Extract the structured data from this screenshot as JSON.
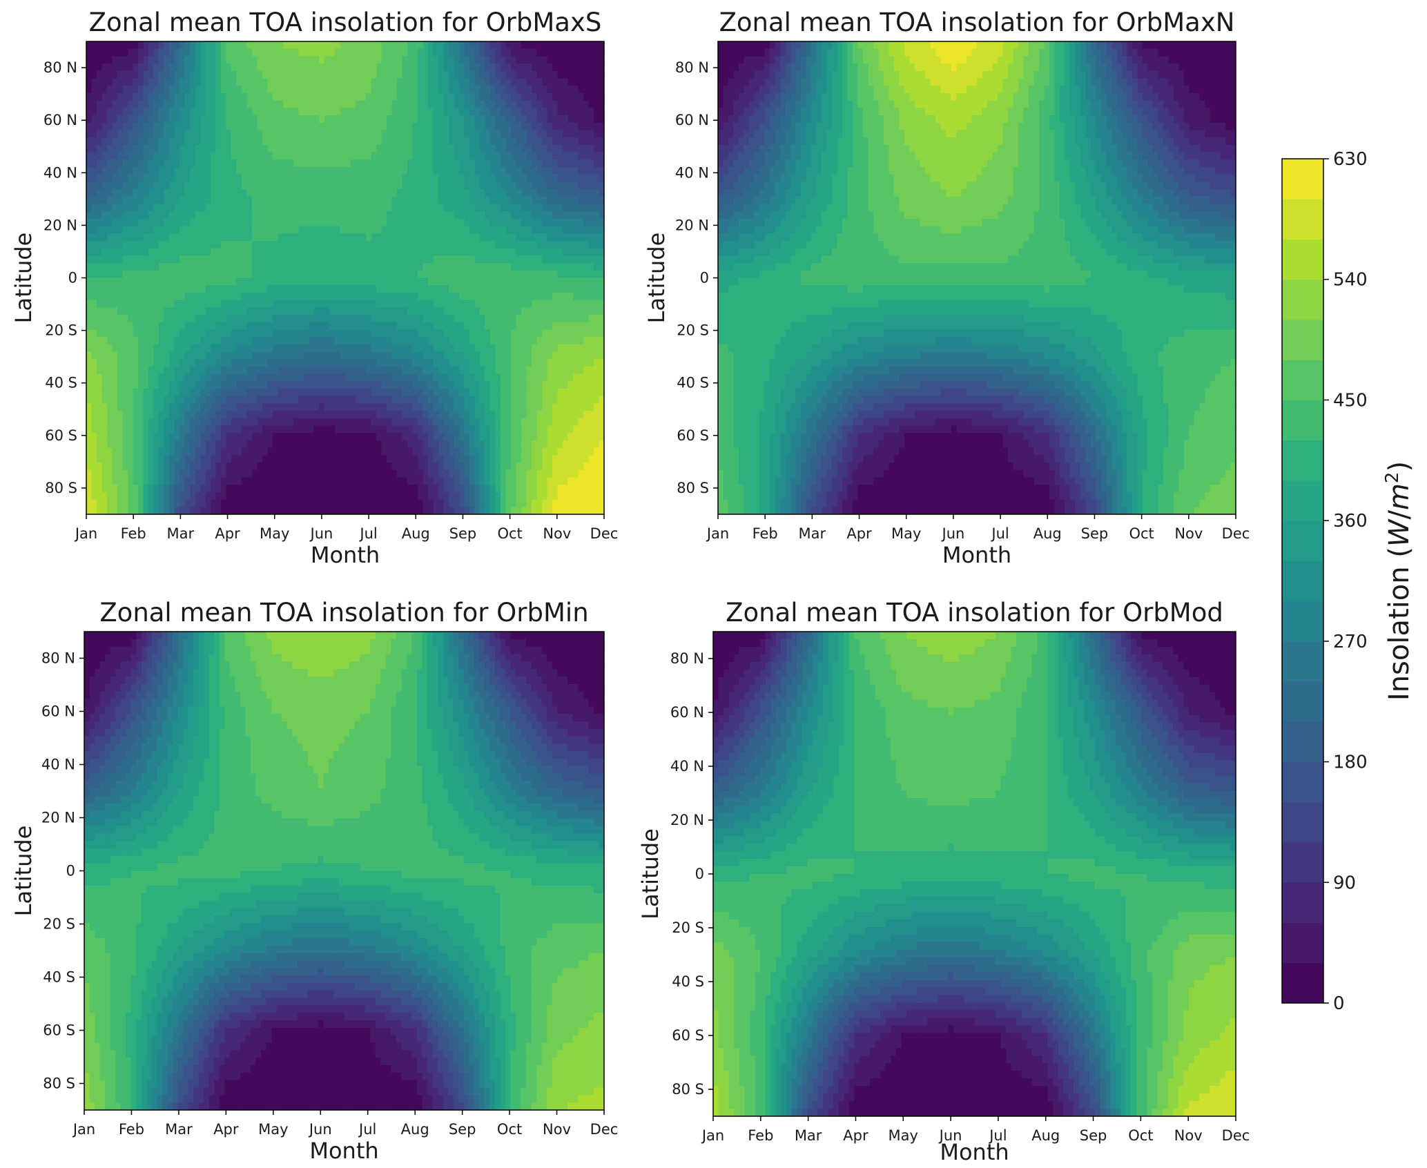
{
  "chart_data": [
    {
      "type": "heatmap",
      "title": "Zonal mean TOA insolation for OrbMaxS",
      "xlabel": "Month",
      "ylabel": "Latitude",
      "x": [
        "Jan",
        "Feb",
        "Mar",
        "Apr",
        "May",
        "Jun",
        "Jul",
        "Aug",
        "Sep",
        "Oct",
        "Nov",
        "Dec"
      ],
      "y_ticks": [
        "80 N",
        "60 N",
        "40 N",
        "20 N",
        "0",
        "20 S",
        "40 S",
        "60 S",
        "80 S"
      ],
      "ylim": [
        -90,
        90
      ],
      "z_grid": {
        "latitudes": [
          90,
          60,
          30,
          0,
          -30,
          -60,
          -90
        ],
        "values": [
          [
            0,
            10,
            220,
            460,
            510,
            520,
            500,
            440,
            240,
            30,
            0,
            0
          ],
          [
            40,
            170,
            310,
            420,
            470,
            480,
            470,
            420,
            330,
            200,
            70,
            20
          ],
          [
            210,
            280,
            360,
            410,
            430,
            430,
            430,
            410,
            370,
            300,
            220,
            190
          ],
          [
            420,
            430,
            440,
            430,
            410,
            400,
            410,
            420,
            440,
            440,
            430,
            420
          ],
          [
            520,
            460,
            370,
            290,
            250,
            230,
            250,
            290,
            360,
            450,
            520,
            540
          ],
          [
            560,
            450,
            260,
            90,
            30,
            10,
            20,
            80,
            250,
            450,
            560,
            600
          ],
          [
            600,
            470,
            150,
            0,
            0,
            0,
            0,
            0,
            140,
            470,
            620,
            630
          ]
        ]
      }
    },
    {
      "type": "heatmap",
      "title": "Zonal mean TOA insolation for OrbMaxN",
      "xlabel": "Month",
      "ylabel": "Latitude",
      "x": [
        "Jan",
        "Feb",
        "Mar",
        "Apr",
        "May",
        "Jun",
        "Jul",
        "Aug",
        "Sep",
        "Oct",
        "Nov",
        "Dec"
      ],
      "y_ticks": [
        "80 N",
        "60 N",
        "40 N",
        "20 N",
        "0",
        "20 S",
        "40 S",
        "60 S",
        "80 S"
      ],
      "ylim": [
        -90,
        90
      ],
      "z_grid": {
        "latitudes": [
          90,
          60,
          30,
          0,
          -30,
          -60,
          -90
        ],
        "values": [
          [
            0,
            10,
            240,
            480,
            580,
            630,
            580,
            470,
            220,
            20,
            0,
            0
          ],
          [
            30,
            160,
            310,
            440,
            520,
            550,
            520,
            430,
            300,
            170,
            50,
            10
          ],
          [
            180,
            260,
            360,
            440,
            490,
            510,
            490,
            440,
            360,
            270,
            190,
            160
          ],
          [
            380,
            400,
            430,
            440,
            440,
            440,
            440,
            440,
            420,
            400,
            380,
            370
          ],
          [
            430,
            400,
            350,
            300,
            270,
            260,
            270,
            300,
            350,
            410,
            440,
            450
          ],
          [
            440,
            380,
            240,
            90,
            30,
            10,
            30,
            90,
            230,
            380,
            450,
            470
          ],
          [
            470,
            380,
            150,
            0,
            0,
            0,
            0,
            0,
            140,
            390,
            480,
            500
          ]
        ]
      }
    },
    {
      "type": "heatmap",
      "title": "Zonal mean TOA insolation for OrbMin",
      "xlabel": "Month",
      "ylabel": "Latitude",
      "x": [
        "Jan",
        "Feb",
        "Mar",
        "Apr",
        "May",
        "Jun",
        "Jul",
        "Aug",
        "Sep",
        "Oct",
        "Nov",
        "Dec"
      ],
      "y_ticks": [
        "80 N",
        "60 N",
        "40 N",
        "20 N",
        "0",
        "20 S",
        "40 S",
        "60 S",
        "80 S"
      ],
      "ylim": [
        -90,
        90
      ],
      "z_grid": {
        "latitudes": [
          90,
          60,
          30,
          0,
          -30,
          -60,
          -90
        ],
        "values": [
          [
            0,
            10,
            230,
            460,
            520,
            540,
            520,
            450,
            230,
            20,
            0,
            0
          ],
          [
            30,
            160,
            300,
            430,
            480,
            490,
            480,
            420,
            310,
            180,
            60,
            20
          ],
          [
            200,
            270,
            360,
            430,
            460,
            480,
            460,
            430,
            370,
            280,
            210,
            180
          ],
          [
            410,
            420,
            430,
            430,
            420,
            410,
            420,
            430,
            430,
            420,
            410,
            400
          ],
          [
            470,
            430,
            360,
            300,
            260,
            240,
            260,
            300,
            360,
            430,
            470,
            480
          ],
          [
            500,
            410,
            250,
            90,
            30,
            10,
            30,
            90,
            240,
            410,
            500,
            520
          ],
          [
            530,
            420,
            150,
            0,
            0,
            0,
            0,
            0,
            140,
            420,
            540,
            550
          ]
        ]
      }
    },
    {
      "type": "heatmap",
      "title": "Zonal mean TOA insolation for OrbMod",
      "xlabel": "Month",
      "ylabel": "Latitude",
      "x": [
        "Jan",
        "Feb",
        "Mar",
        "Apr",
        "May",
        "Jun",
        "Jul",
        "Aug",
        "Sep",
        "Oct",
        "Nov",
        "Dec"
      ],
      "y_ticks": [
        "80 N",
        "60 N",
        "40 N",
        "20 N",
        "0",
        "20 S",
        "40 S",
        "60 S",
        "80 S"
      ],
      "ylim": [
        -90,
        90
      ],
      "z_grid": {
        "latitudes": [
          90,
          60,
          30,
          0,
          -30,
          -60,
          -90
        ],
        "values": [
          [
            0,
            10,
            220,
            450,
            510,
            530,
            510,
            440,
            230,
            20,
            0,
            0
          ],
          [
            30,
            160,
            300,
            420,
            470,
            480,
            470,
            420,
            310,
            180,
            60,
            20
          ],
          [
            200,
            270,
            360,
            420,
            450,
            460,
            450,
            420,
            360,
            280,
            200,
            180
          ],
          [
            410,
            420,
            430,
            420,
            410,
            400,
            410,
            420,
            430,
            420,
            410,
            400
          ],
          [
            500,
            450,
            370,
            300,
            260,
            240,
            260,
            300,
            360,
            440,
            500,
            510
          ],
          [
            520,
            430,
            260,
            90,
            30,
            10,
            30,
            90,
            250,
            430,
            520,
            550
          ],
          [
            560,
            440,
            150,
            0,
            0,
            0,
            0,
            0,
            140,
            440,
            580,
            600
          ]
        ]
      }
    }
  ],
  "colorbar": {
    "label_main": "Insolation (",
    "label_var": "W",
    "label_slash": "/",
    "label_var2": "m",
    "label_exp": "2",
    "label_close": ")",
    "ticks": [
      "0",
      "90",
      "180",
      "270",
      "360",
      "450",
      "540",
      "630"
    ],
    "range": [
      0,
      630
    ],
    "levels": 21,
    "colormap": "viridis"
  }
}
